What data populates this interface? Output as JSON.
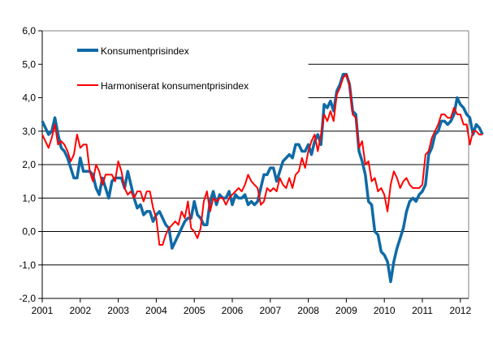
{
  "chart_data": {
    "type": "line",
    "title": "",
    "xlabel": "",
    "ylabel": "",
    "ylim": [
      -2,
      6
    ],
    "yticks": [
      "-2,0",
      "-1,0",
      "0,0",
      "1,0",
      "2,0",
      "3,0",
      "4,0",
      "5,0",
      "6,0"
    ],
    "ytick_values": [
      -2,
      -1,
      0,
      1,
      2,
      3,
      4,
      5,
      6
    ],
    "xticks": [
      "2001",
      "2002",
      "2003",
      "2004",
      "2005",
      "2006",
      "2007",
      "2008",
      "2009",
      "2010",
      "2011",
      "2012"
    ],
    "x_start": "2001-01",
    "x_frequency": "monthly",
    "grid": "horizontal",
    "legend_placement": "top-left",
    "series": [
      {
        "name": "Konsumentprisindex",
        "color": "#0f6aa6",
        "values": [
          3.3,
          3.1,
          2.9,
          3.0,
          3.4,
          2.9,
          2.5,
          2.4,
          2.2,
          1.9,
          1.6,
          1.6,
          2.2,
          1.8,
          1.8,
          1.8,
          1.7,
          1.3,
          1.1,
          1.6,
          1.3,
          1.0,
          1.5,
          1.6,
          1.6,
          1.6,
          1.3,
          1.8,
          1.4,
          1.0,
          0.7,
          0.8,
          0.5,
          0.6,
          0.6,
          0.3,
          0.5,
          0.6,
          0.4,
          0.2,
          0.1,
          -0.5,
          -0.3,
          -0.1,
          0.1,
          0.3,
          0.4,
          0.4,
          0.9,
          0.5,
          0.4,
          0.2,
          0.2,
          0.9,
          1.2,
          0.8,
          1.1,
          1.0,
          1.0,
          1.2,
          0.8,
          1.1,
          1.0,
          1.0,
          1.1,
          0.8,
          0.9,
          0.8,
          0.9,
          1.3,
          1.7,
          1.7,
          1.9,
          1.9,
          1.5,
          1.8,
          2.1,
          2.2,
          2.3,
          2.2,
          2.6,
          2.6,
          2.4,
          2.4,
          2.6,
          2.3,
          2.7,
          2.9,
          2.6,
          3.8,
          3.7,
          3.9,
          3.6,
          4.2,
          4.4,
          4.7,
          4.7,
          4.4,
          3.6,
          3.5,
          2.4,
          2.1,
          1.7,
          0.9,
          0.8,
          0.0,
          -0.1,
          -0.6,
          -0.7,
          -0.9,
          -1.5,
          -0.9,
          -0.5,
          -0.2,
          0.1,
          0.6,
          0.9,
          1.0,
          0.9,
          1.1,
          1.2,
          1.4,
          2.3,
          2.5,
          2.9,
          3.0,
          3.3,
          3.3,
          3.2,
          3.3,
          3.5,
          4.0,
          3.8,
          3.7,
          3.5,
          3.4,
          2.9,
          3.2,
          3.1,
          2.9
        ]
      },
      {
        "name": "Harmoniserat konsumentprisindex",
        "color": "#ff0000",
        "values": [
          2.9,
          2.7,
          2.5,
          2.8,
          3.2,
          2.6,
          2.7,
          2.6,
          2.4,
          2.1,
          2.3,
          2.9,
          2.5,
          2.6,
          2.6,
          1.8,
          1.5,
          2.0,
          1.8,
          1.4,
          1.7,
          1.7,
          1.7,
          1.5,
          2.1,
          1.8,
          1.3,
          1.1,
          1.2,
          1.0,
          1.2,
          1.2,
          0.9,
          1.2,
          1.2,
          0.7,
          0.4,
          -0.4,
          -0.4,
          -0.1,
          0.1,
          0.2,
          0.3,
          0.2,
          0.6,
          0.4,
          0.9,
          0.1,
          0.0,
          -0.2,
          0.1,
          0.9,
          1.2,
          0.6,
          1.0,
          0.9,
          1.0,
          1.0,
          0.8,
          1.0,
          1.1,
          1.2,
          1.3,
          1.2,
          1.4,
          1.7,
          1.5,
          1.4,
          1.3,
          0.8,
          0.9,
          1.3,
          1.2,
          1.3,
          1.2,
          1.6,
          1.4,
          1.3,
          1.6,
          1.3,
          1.7,
          1.8,
          2.2,
          1.9,
          2.4,
          2.7,
          2.9,
          2.4,
          2.9,
          3.5,
          3.3,
          3.6,
          3.3,
          4.1,
          4.3,
          4.6,
          4.7,
          4.4,
          3.5,
          3.4,
          2.5,
          2.7,
          2.0,
          2.1,
          1.5,
          1.6,
          1.2,
          1.3,
          1.1,
          0.6,
          1.4,
          1.8,
          1.6,
          1.3,
          1.5,
          1.6,
          1.4,
          1.3,
          1.3,
          1.3,
          1.4,
          2.3,
          2.4,
          2.8,
          3.0,
          3.2,
          3.5,
          3.5,
          3.4,
          3.4,
          3.7,
          3.5,
          3.5,
          3.2,
          3.2,
          2.6,
          3.0,
          3.0,
          2.9,
          2.9
        ]
      }
    ]
  }
}
